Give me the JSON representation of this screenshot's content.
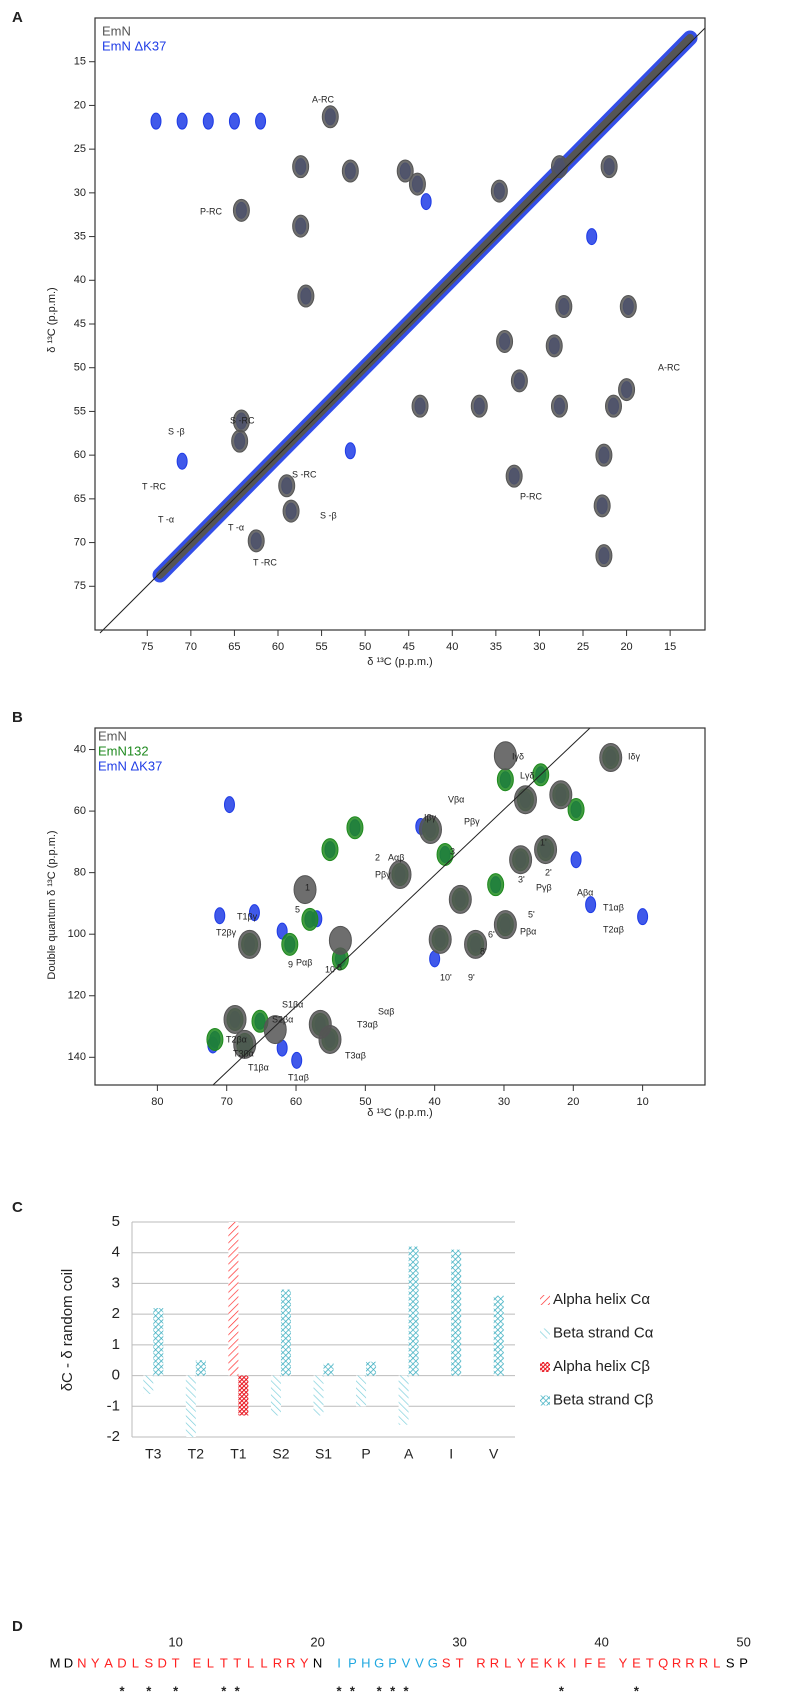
{
  "panel_labels": [
    "A",
    "B",
    "C",
    "D"
  ],
  "chart_data": [
    {
      "type": "contour",
      "xlabel": "δ ¹³C (p.p.m.)",
      "ylabel": "δ ¹³C (p.p.m.)",
      "xlim": [
        81,
        11
      ],
      "ylim": [
        80,
        10
      ],
      "xticks": [
        75,
        70,
        65,
        60,
        55,
        50,
        45,
        40,
        35,
        30,
        25,
        20,
        15
      ],
      "yticks": [
        15,
        20,
        25,
        30,
        35,
        40,
        45,
        50,
        55,
        60,
        65,
        70,
        75
      ],
      "series": [
        {
          "name": "EmN",
          "color": "#555555",
          "x": [
            45.4,
            44,
            57.4,
            57.4,
            56.8,
            51.7,
            64.2,
            54,
            27.2,
            19.8,
            34.6,
            27.7,
            22,
            34,
            28.3,
            43.7,
            36.9,
            27.7,
            21.5,
            32.3,
            32.9,
            22.6,
            22.6,
            22.8,
            20,
            64.2,
            64.4,
            59,
            58.5,
            62.5
          ],
          "y": [
            27.5,
            29,
            27,
            33.8,
            41.8,
            27.5,
            32,
            21.3,
            43,
            43,
            29.8,
            27,
            27,
            47,
            47.5,
            54.4,
            54.4,
            54.4,
            54.4,
            51.5,
            62.4,
            60,
            71.5,
            65.8,
            52.5,
            56.1,
            58.4,
            63.5,
            66.4,
            69.8
          ]
        },
        {
          "name": "EmN ΔK37",
          "color": "#1f3ce6",
          "x": [
            45.4,
            44,
            57.4,
            57.4,
            56.8,
            51.7,
            64.2,
            54,
            27.2,
            19.8,
            34.6,
            27.7,
            22,
            34,
            28.3,
            43.7,
            36.9,
            27.7,
            21.5,
            32.3,
            32.9,
            22.6,
            22.6,
            22.8,
            20,
            64.2,
            64.4,
            59,
            58.5,
            62.5,
            74,
            71,
            68,
            65,
            62,
            71,
            51.7,
            24,
            43
          ],
          "y": [
            27.5,
            29,
            27,
            33.8,
            41.8,
            27.5,
            32,
            21.3,
            43,
            43,
            29.8,
            27,
            27,
            47,
            47.5,
            54.4,
            54.4,
            54.4,
            54.4,
            51.5,
            62.4,
            60,
            71.5,
            65.8,
            52.5,
            56.1,
            58.4,
            63.5,
            66.4,
            69.8,
            21.8,
            21.8,
            21.8,
            21.8,
            21.8,
            60.7,
            59.5,
            35,
            31
          ]
        }
      ],
      "annotations": [
        "A-RC",
        "P-RC",
        "S -β",
        "S -RC",
        "T -RC",
        "S -RC",
        "S -β",
        "T -α",
        "T -α",
        "T -RC",
        "A-RC",
        "P-RC"
      ]
    },
    {
      "type": "contour",
      "xlabel": "δ ¹³C (p.p.m.)",
      "ylabel": "Double quantum  δ ¹³C (p.p.m.)",
      "xlim": [
        89,
        1
      ],
      "ylim": [
        149,
        33
      ],
      "xticks": [
        80,
        70,
        60,
        50,
        40,
        30,
        20,
        10
      ],
      "yticks": [
        40,
        60,
        80,
        100,
        120,
        140
      ],
      "series": [
        {
          "name": "EmN",
          "color": "#555555",
          "x": [
            58.7,
            66.7,
            53.6,
            39.2,
            34.1,
            29.8,
            36.3,
            27.6,
            24,
            26.9,
            29.8,
            21.8,
            45,
            40.6,
            68.8,
            56.5,
            67.4,
            55.1,
            63,
            14.6
          ],
          "y": [
            85.5,
            103.3,
            102,
            101.7,
            103.3,
            96.9,
            88.7,
            75.8,
            72.5,
            56.3,
            42,
            54.7,
            80.6,
            66,
            127.7,
            129.3,
            135.8,
            134.2,
            131,
            42.6
          ]
        },
        {
          "name": "EmN132",
          "color": "#1f8a1f",
          "x": [
            55.1,
            58,
            60.9,
            53.6,
            66.7,
            40.6,
            38.5,
            39.2,
            34.1,
            29.8,
            36.3,
            31.2,
            27.6,
            24,
            26.9,
            21.8,
            19.6,
            14.6,
            29.8,
            24.7,
            45,
            51.5,
            68.8,
            65.2,
            71.7,
            56.5,
            55.1,
            67.4
          ],
          "y": [
            72.5,
            95.2,
            103.3,
            108,
            103.3,
            66,
            74.1,
            101.7,
            103.3,
            96.9,
            88.7,
            83.9,
            75.8,
            72.5,
            56.3,
            54.7,
            59.5,
            42.6,
            49.8,
            48.2,
            80.6,
            65.4,
            127.7,
            128.3,
            134.2,
            129.3,
            134.2,
            135.8
          ]
        },
        {
          "name": "EmN ΔK37",
          "color": "#1f3ce6",
          "x": [
            55.1,
            58,
            60.9,
            53.6,
            66.7,
            40.6,
            38.5,
            39.2,
            34.1,
            29.8,
            36.3,
            31.2,
            27.6,
            24,
            26.9,
            21.8,
            19.6,
            14.6,
            29.8,
            24.7,
            45,
            51.5,
            68.8,
            65.2,
            71.7,
            56.5,
            55.1,
            67.4,
            69.6,
            19.6,
            17.5,
            10,
            62,
            59.9,
            72,
            71,
            66,
            62,
            57,
            40,
            42
          ],
          "y": [
            72.5,
            95.2,
            103.3,
            108,
            103.3,
            66,
            74.1,
            101.7,
            103.3,
            96.9,
            88.7,
            83.9,
            75.8,
            72.5,
            56.3,
            54.7,
            59.5,
            42.6,
            49.8,
            48.2,
            80.6,
            65.4,
            127.7,
            128.3,
            134.2,
            129.3,
            134.2,
            135.8,
            57.9,
            75.8,
            90.4,
            94.3,
            137,
            141,
            136,
            94,
            93,
            99,
            95,
            108,
            65
          ]
        }
      ],
      "annotations": [
        "Iγδ",
        "Iδγ",
        "Lγδ",
        "Vβα",
        "Iβγ",
        "Pβγ",
        "Aαβ",
        "Pβγ",
        "Pγβ",
        "Aβα",
        "T1αβ",
        "T2αβ",
        "Pβα",
        "T1βγ",
        "T2βγ",
        "Pαβ",
        "S1βα",
        "S2βα",
        "T2βα",
        "T3βα",
        "T1βα",
        "T1αβ",
        "T3αβ",
        "T3αβ",
        "Sαβ",
        "1",
        "2",
        "3",
        "5",
        "8",
        "9",
        "10",
        "1'",
        "2'",
        "3'",
        "5'",
        "6'",
        "8'",
        "9'",
        "10'"
      ]
    },
    {
      "type": "bar",
      "ylabel": "δC - δ random coil",
      "categories": [
        "T3",
        "T2",
        "T1",
        "S2",
        "S1",
        "P",
        "A",
        "I",
        "V"
      ],
      "ylim": [
        -2,
        5
      ],
      "yticks": [
        -2,
        -1,
        0,
        1,
        2,
        3,
        4,
        5
      ],
      "grid": true,
      "series": [
        {
          "name": "Alpha helix Cα",
          "color": "#ff3030",
          "values": [
            null,
            null,
            5,
            null,
            null,
            null,
            null,
            null,
            null
          ]
        },
        {
          "name": "Beta strand Cα",
          "color": "#7fd0dc",
          "values": [
            -0.6,
            -2,
            null,
            -1.3,
            -1.3,
            -1,
            -1.6,
            null,
            null
          ]
        },
        {
          "name": "Alpha helix Cβ",
          "color": "#e8101a",
          "values": [
            null,
            null,
            -1.3,
            null,
            null,
            null,
            null,
            null,
            null
          ]
        },
        {
          "name": "Beta strand Cβ",
          "color": "#3aaec0",
          "values": [
            2.2,
            0.5,
            null,
            2.8,
            0.4,
            0.45,
            4.2,
            4.1,
            2.6
          ]
        }
      ]
    }
  ],
  "sequence": {
    "numbers": [
      10,
      20,
      30,
      40,
      50
    ],
    "segments": [
      {
        "text": "MD",
        "color": "#000000"
      },
      {
        "text": "NYADLSDT",
        "color": "#ff2020"
      },
      {
        "text": "ELTTLLRRY",
        "color": "#ff2020"
      },
      {
        "text": "N",
        "color": "#000000"
      },
      {
        "text": "IPHGPVVG",
        "color": "#20a8e0"
      },
      {
        "text": "ST",
        "color": "#ff2020"
      },
      {
        "text": "RRLYEKKIFE",
        "color": "#ff2020"
      },
      {
        "text": "YETQRRRL",
        "color": "#ff2020"
      },
      {
        "text": "SP",
        "color": "#000000"
      }
    ],
    "marker": "*",
    "marked": [
      6,
      8,
      10,
      13,
      14,
      21,
      22,
      24,
      25,
      26,
      37,
      42
    ]
  }
}
